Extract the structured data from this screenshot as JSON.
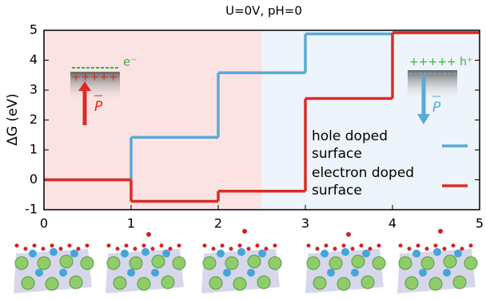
{
  "chart_data": {
    "type": "step",
    "title": "U=0V, pH=0",
    "y_label": "ΔG (eV)",
    "x": [
      0,
      1,
      2,
      3,
      4
    ],
    "series": [
      {
        "name": "hole doped surface",
        "color": "#5aa9d6",
        "values": [
          0,
          1.42,
          3.58,
          4.88,
          4.92
        ]
      },
      {
        "name": "electron doped surface",
        "color": "#dc2b24",
        "values": [
          0,
          -0.72,
          -0.38,
          2.72,
          4.92
        ]
      }
    ],
    "xlim": [
      0,
      5
    ],
    "ylim": [
      -1,
      5
    ],
    "xticks": [
      0,
      1,
      2,
      3,
      4,
      5
    ],
    "yticks": [
      -1,
      0,
      1,
      2,
      3,
      4,
      5
    ],
    "regions": [
      {
        "xlim": [
          0,
          2.5
        ],
        "color": "#fbe3e3"
      },
      {
        "xlim": [
          2.5,
          5
        ],
        "color": "#eef4fb"
      }
    ],
    "annotations": {
      "left_charge": "+++++",
      "left_electron": "e⁻",
      "left_vector": "P",
      "right_charge": "+++++ h⁺",
      "right_vector": "P"
    }
  }
}
